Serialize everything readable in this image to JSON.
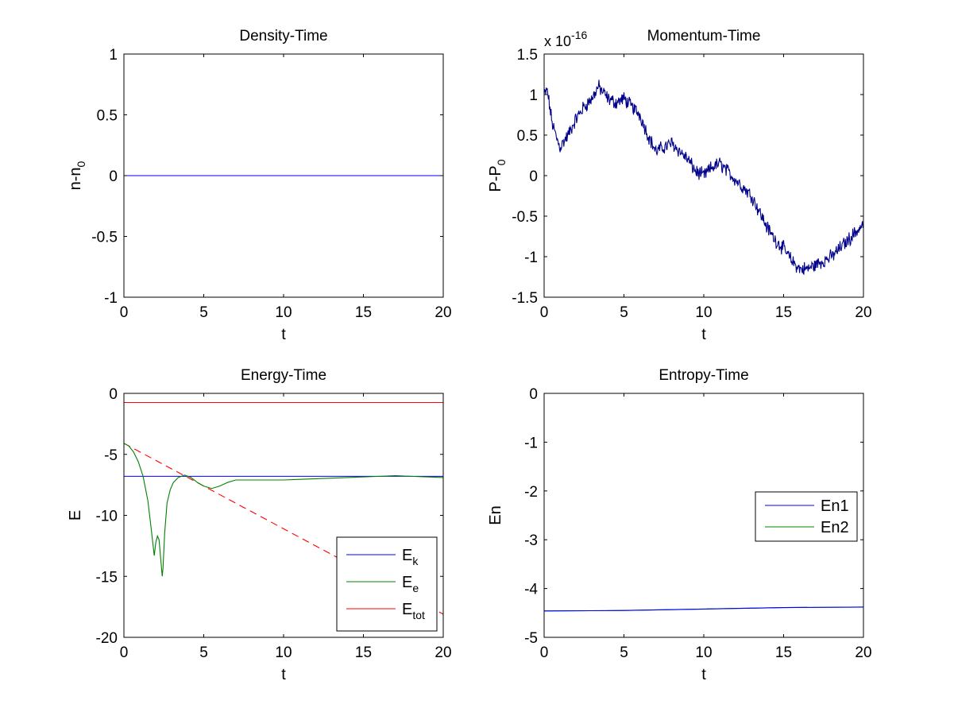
{
  "chart_data": [
    {
      "type": "line",
      "title": "Density-Time",
      "xlabel": "t",
      "ylabel": "n-n",
      "ylabel_sub": "0",
      "xlim": [
        0,
        20
      ],
      "ylim": [
        -1,
        1
      ],
      "xticks": [
        0,
        5,
        10,
        15,
        20
      ],
      "yticks": [
        -1,
        -0.5,
        0,
        0.5,
        1
      ],
      "ytick_labels": [
        "-1",
        "-0.5",
        "0",
        "0.5",
        "1"
      ],
      "series": [
        {
          "color": "#0000ff",
          "style": "solid",
          "x": [
            0,
            20
          ],
          "y": [
            0,
            0
          ]
        }
      ],
      "legend": null
    },
    {
      "type": "line",
      "title": "Momentum-Time",
      "xlabel": "t",
      "ylabel": "P-P",
      "ylabel_sub": "0",
      "exponent_label": "x 10",
      "exponent_sup": "-16",
      "xlim": [
        0,
        20
      ],
      "ylim": [
        -1.5,
        1.5
      ],
      "xticks": [
        0,
        5,
        10,
        15,
        20
      ],
      "yticks": [
        -1.5,
        -1,
        -0.5,
        0,
        0.5,
        1,
        1.5
      ],
      "ytick_labels": [
        "-1.5",
        "-1",
        "-0.5",
        "0",
        "0.5",
        "1",
        "1.5"
      ],
      "series": [
        {
          "color": "#00008b",
          "style": "solid",
          "noise": 0.07,
          "x": [
            0,
            0.2,
            0.5,
            0.8,
            1,
            1.5,
            2,
            2.5,
            3,
            3.4,
            4,
            4.5,
            5,
            5.5,
            6,
            6.5,
            7,
            7.5,
            8,
            8.5,
            9,
            9.5,
            10,
            10.5,
            11,
            11.5,
            12,
            12.5,
            13,
            13.5,
            14,
            14.5,
            15,
            15.5,
            16,
            16.5,
            17,
            17.5,
            18,
            18.5,
            19,
            19.5,
            20
          ],
          "y": [
            1.0,
            1.05,
            0.65,
            0.45,
            0.35,
            0.5,
            0.7,
            0.85,
            0.95,
            1.1,
            0.95,
            0.9,
            0.95,
            0.85,
            0.75,
            0.5,
            0.3,
            0.35,
            0.4,
            0.3,
            0.2,
            0.05,
            0.0,
            0.1,
            0.15,
            0.05,
            -0.05,
            -0.15,
            -0.25,
            -0.45,
            -0.65,
            -0.8,
            -0.9,
            -1.05,
            -1.15,
            -1.15,
            -1.1,
            -1.05,
            -1.0,
            -0.9,
            -0.8,
            -0.7,
            -0.6
          ]
        }
      ],
      "legend": null
    },
    {
      "type": "line",
      "title": "Energy-Time",
      "xlabel": "t",
      "ylabel": "E",
      "xlim": [
        0,
        20
      ],
      "ylim": [
        -20,
        0
      ],
      "xticks": [
        0,
        5,
        10,
        15,
        20
      ],
      "yticks": [
        -20,
        -15,
        -10,
        -5,
        0
      ],
      "ytick_labels": [
        "-20",
        "-15",
        "-10",
        "-5",
        "0"
      ],
      "series": [
        {
          "label": "E",
          "label_sub": "tot",
          "color": "#ff0000",
          "style": "solid",
          "x": [
            0,
            20
          ],
          "y": [
            -0.75,
            -0.75
          ]
        },
        {
          "label": "",
          "color": "#ff0000",
          "style": "dashed",
          "x": [
            0,
            20
          ],
          "y": [
            -4.1,
            -18.1
          ]
        },
        {
          "label": "E",
          "label_sub": "k",
          "color": "#0000ff",
          "style": "solid",
          "x": [
            0,
            20
          ],
          "y": [
            -6.8,
            -6.8
          ],
          "hidden_under_green": true
        },
        {
          "label": "E",
          "label_sub": "e",
          "color": "#008000",
          "style": "solid",
          "x": [
            0,
            0.3,
            0.6,
            0.9,
            1.2,
            1.5,
            1.7,
            1.9,
            2.0,
            2.1,
            2.2,
            2.3,
            2.4,
            2.45,
            2.55,
            2.7,
            2.9,
            3.1,
            3.4,
            3.8,
            4.2,
            4.6,
            5.0,
            5.5,
            6.0,
            6.5,
            7.0,
            8,
            10,
            12,
            14,
            16,
            17,
            18,
            20
          ],
          "y": [
            -4.1,
            -4.3,
            -4.8,
            -5.6,
            -6.8,
            -8.8,
            -11.0,
            -13.3,
            -12.2,
            -11.7,
            -12.0,
            -13.5,
            -15.0,
            -14.3,
            -11.5,
            -9.0,
            -7.9,
            -7.3,
            -6.9,
            -6.7,
            -6.9,
            -7.3,
            -7.6,
            -7.8,
            -7.6,
            -7.3,
            -7.1,
            -7.1,
            -7.1,
            -7.0,
            -6.9,
            -6.8,
            -6.75,
            -6.8,
            -6.9
          ]
        }
      ],
      "legend": {
        "position": "lower-right",
        "entries": [
          {
            "label": "E",
            "sub": "k",
            "color": "#0000ff"
          },
          {
            "label": "E",
            "sub": "e",
            "color": "#008000"
          },
          {
            "label": "E",
            "sub": "tot",
            "color": "#ff0000"
          }
        ]
      }
    },
    {
      "type": "line",
      "title": "Entropy-Time",
      "xlabel": "t",
      "ylabel": "En",
      "xlim": [
        0,
        20
      ],
      "ylim": [
        -5,
        0
      ],
      "xticks": [
        0,
        5,
        10,
        15,
        20
      ],
      "yticks": [
        -5,
        -4,
        -3,
        -2,
        -1,
        0
      ],
      "ytick_labels": [
        "-5",
        "-4",
        "-3",
        "-2",
        "-1",
        "0"
      ],
      "series": [
        {
          "label": "En2",
          "color": "#008000",
          "style": "solid",
          "x": [
            0,
            5,
            10,
            15,
            20
          ],
          "y": [
            -4.46,
            -4.45,
            -4.42,
            -4.39,
            -4.38
          ]
        },
        {
          "label": "En1",
          "color": "#0000ff",
          "style": "solid",
          "x": [
            0,
            5,
            10,
            15,
            20
          ],
          "y": [
            -4.46,
            -4.45,
            -4.42,
            -4.39,
            -4.38
          ]
        }
      ],
      "legend": {
        "position": "right",
        "entries": [
          {
            "label": "En1",
            "sub": "",
            "color": "#0000ff"
          },
          {
            "label": "En2",
            "sub": "",
            "color": "#008000"
          }
        ]
      }
    }
  ]
}
